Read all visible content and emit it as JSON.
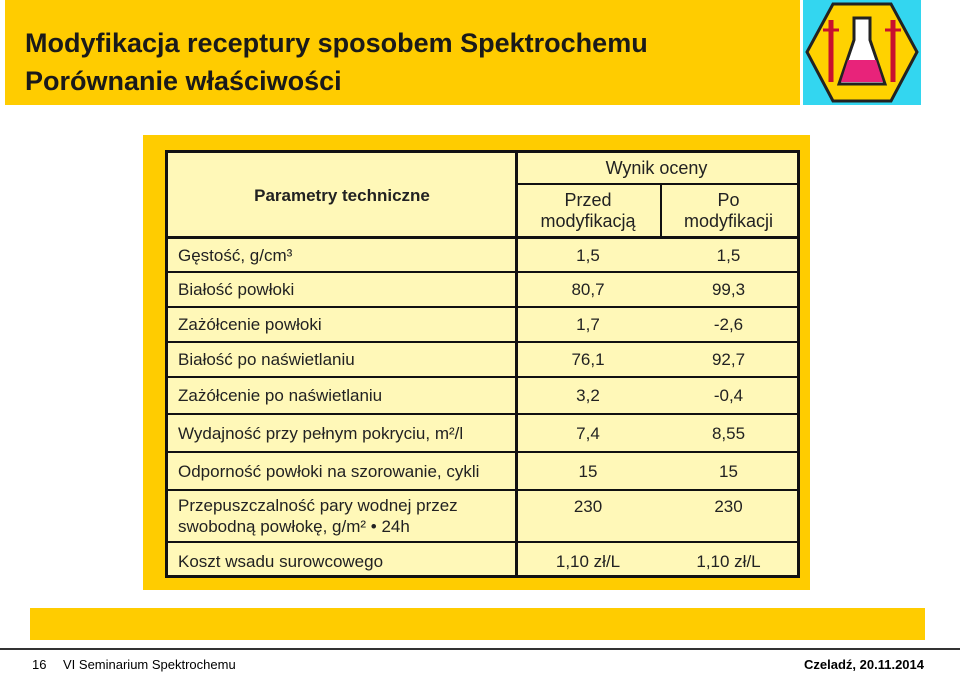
{
  "header": {
    "title": "Modyfikacja receptury sposobem Spektrochemu",
    "subtitle": "Porównanie właściwości"
  },
  "table": {
    "header": {
      "parameters": "Parametry techniczne",
      "group": "Wynik oceny",
      "columns": [
        "Przed\nmodyfikacją",
        "Po\nmodyfikacji"
      ]
    },
    "rows": [
      [
        "Gęstość, g/cm³",
        "1,5",
        "1,5"
      ],
      [
        "Białość powłoki",
        "80,7",
        "99,3"
      ],
      [
        "Zażółcenie powłoki",
        "1,7",
        "-2,6"
      ],
      [
        "Białość po naświetlaniu",
        "76,1",
        "92,7"
      ],
      [
        "Zażółcenie po naświetlaniu",
        "3,2",
        "-0,4"
      ],
      [
        "Wydajność przy pełnym pokryciu, m²/l",
        "7,4",
        "8,55"
      ],
      [
        "Odporność powłoki na szorowanie, cykli",
        "15",
        "15"
      ],
      [
        "Przepuszczalność pary wodnej przez\nswobodną powłokę, g/m² • 24h",
        "230",
        "230"
      ],
      [
        "Koszt wsadu surowcowego",
        "1,10 zł/L",
        "1,10 zł/L"
      ]
    ]
  },
  "footer": {
    "page": "16",
    "event": "VI Seminarium Spektrochemu",
    "place_date": "Czeladź, 20.11.2014"
  }
}
